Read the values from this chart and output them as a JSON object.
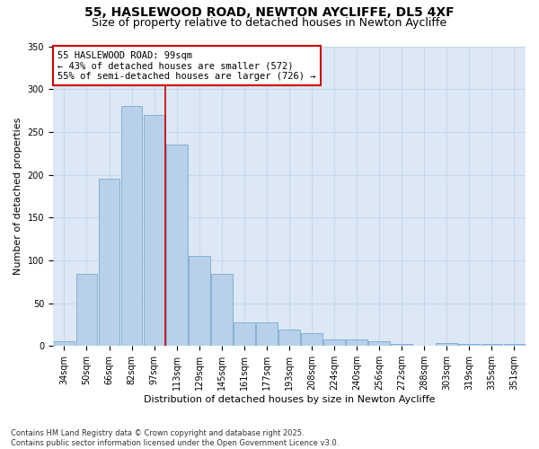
{
  "title1": "55, HASLEWOOD ROAD, NEWTON AYCLIFFE, DL5 4XF",
  "title2": "Size of property relative to detached houses in Newton Aycliffe",
  "xlabel": "Distribution of detached houses by size in Newton Aycliffe",
  "ylabel": "Number of detached properties",
  "categories": [
    "34sqm",
    "50sqm",
    "66sqm",
    "82sqm",
    "97sqm",
    "113sqm",
    "129sqm",
    "145sqm",
    "161sqm",
    "177sqm",
    "193sqm",
    "208sqm",
    "224sqm",
    "240sqm",
    "256sqm",
    "272sqm",
    "288sqm",
    "303sqm",
    "319sqm",
    "335sqm",
    "351sqm"
  ],
  "values": [
    6,
    84,
    195,
    280,
    270,
    235,
    105,
    84,
    27,
    27,
    19,
    15,
    8,
    8,
    6,
    2,
    0,
    3,
    2,
    2,
    2
  ],
  "bar_color": "#b8d0ea",
  "bar_edge_color": "#7aaacf",
  "vline_color": "#cc0000",
  "vline_x_index": 4,
  "annotation_text": "55 HASLEWOOD ROAD: 99sqm\n← 43% of detached houses are smaller (572)\n55% of semi-detached houses are larger (726) →",
  "annotation_box_color": "#ffffff",
  "annotation_box_edge": "#cc0000",
  "ylim": [
    0,
    350
  ],
  "yticks": [
    0,
    50,
    100,
    150,
    200,
    250,
    300,
    350
  ],
  "grid_color": "#c8d8ec",
  "background_color": "#dce8f5",
  "footer": "Contains HM Land Registry data © Crown copyright and database right 2025.\nContains public sector information licensed under the Open Government Licence v3.0.",
  "title1_fontsize": 10,
  "title2_fontsize": 9,
  "tick_fontsize": 7,
  "label_fontsize": 8,
  "annotation_fontsize": 7.5,
  "footer_fontsize": 6
}
